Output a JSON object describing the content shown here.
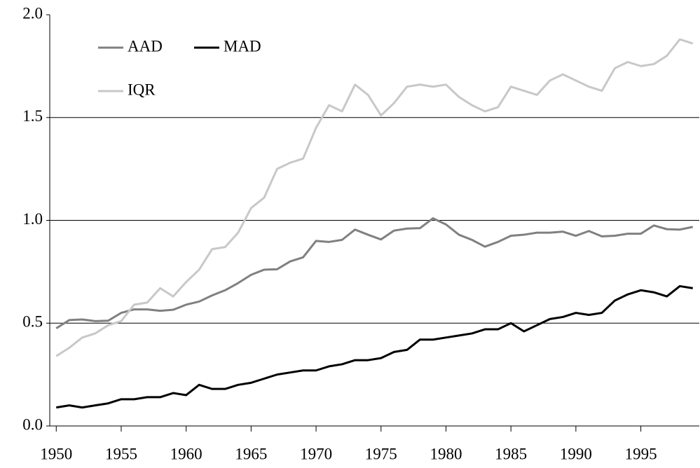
{
  "chart_data": {
    "type": "line",
    "x": [
      1950,
      1951,
      1952,
      1953,
      1954,
      1955,
      1956,
      1957,
      1958,
      1959,
      1960,
      1961,
      1962,
      1963,
      1964,
      1965,
      1966,
      1967,
      1968,
      1969,
      1970,
      1971,
      1972,
      1973,
      1974,
      1975,
      1976,
      1977,
      1978,
      1979,
      1980,
      1981,
      1982,
      1983,
      1984,
      1985,
      1986,
      1987,
      1988,
      1989,
      1990,
      1991,
      1992,
      1993,
      1994,
      1995,
      1996,
      1997,
      1998,
      1999
    ],
    "series": [
      {
        "name": "AAD",
        "color": "#808080",
        "values": [
          0.475,
          0.515,
          0.518,
          0.51,
          0.512,
          0.55,
          0.567,
          0.567,
          0.56,
          0.565,
          0.59,
          0.605,
          0.635,
          0.66,
          0.695,
          0.735,
          0.76,
          0.762,
          0.8,
          0.82,
          0.9,
          0.895,
          0.905,
          0.955,
          0.93,
          0.907,
          0.95,
          0.96,
          0.962,
          1.01,
          0.98,
          0.93,
          0.905,
          0.872,
          0.895,
          0.925,
          0.93,
          0.94,
          0.94,
          0.945,
          0.925,
          0.948,
          0.922,
          0.925,
          0.935,
          0.935,
          0.975,
          0.957,
          0.955,
          0.968
        ]
      },
      {
        "name": "MAD",
        "color": "#000000",
        "values": [
          0.09,
          0.1,
          0.09,
          0.1,
          0.11,
          0.13,
          0.13,
          0.14,
          0.14,
          0.16,
          0.15,
          0.2,
          0.18,
          0.18,
          0.2,
          0.21,
          0.23,
          0.25,
          0.26,
          0.27,
          0.27,
          0.29,
          0.3,
          0.32,
          0.32,
          0.33,
          0.36,
          0.37,
          0.42,
          0.42,
          0.43,
          0.44,
          0.45,
          0.47,
          0.47,
          0.5,
          0.46,
          0.49,
          0.52,
          0.53,
          0.55,
          0.54,
          0.55,
          0.61,
          0.64,
          0.66,
          0.65,
          0.63,
          0.68,
          0.67
        ]
      },
      {
        "name": "IQR",
        "color": "#c8c8c8",
        "values": [
          0.34,
          0.38,
          0.43,
          0.45,
          0.49,
          0.51,
          0.59,
          0.6,
          0.67,
          0.63,
          0.7,
          0.76,
          0.86,
          0.87,
          0.94,
          1.06,
          1.11,
          1.25,
          1.28,
          1.3,
          1.45,
          1.56,
          1.53,
          1.66,
          1.61,
          1.51,
          1.57,
          1.65,
          1.66,
          1.65,
          1.66,
          1.6,
          1.56,
          1.53,
          1.55,
          1.65,
          1.63,
          1.61,
          1.68,
          1.71,
          1.68,
          1.65,
          1.63,
          1.74,
          1.77,
          1.75,
          1.76,
          1.8,
          1.88,
          1.86
        ]
      }
    ],
    "xlim": [
      1949.5,
      1999.5
    ],
    "xticks": [
      1950,
      1955,
      1960,
      1965,
      1970,
      1975,
      1980,
      1985,
      1990,
      1995
    ],
    "ylim": [
      0,
      2
    ],
    "yticks": [
      {
        "value": 0,
        "label": "0.0"
      },
      0.5,
      {
        "value": 1,
        "label": "1.0"
      },
      1.5,
      {
        "value": 2,
        "label": "2.0"
      }
    ],
    "grid": true,
    "legend": "upper-left"
  }
}
